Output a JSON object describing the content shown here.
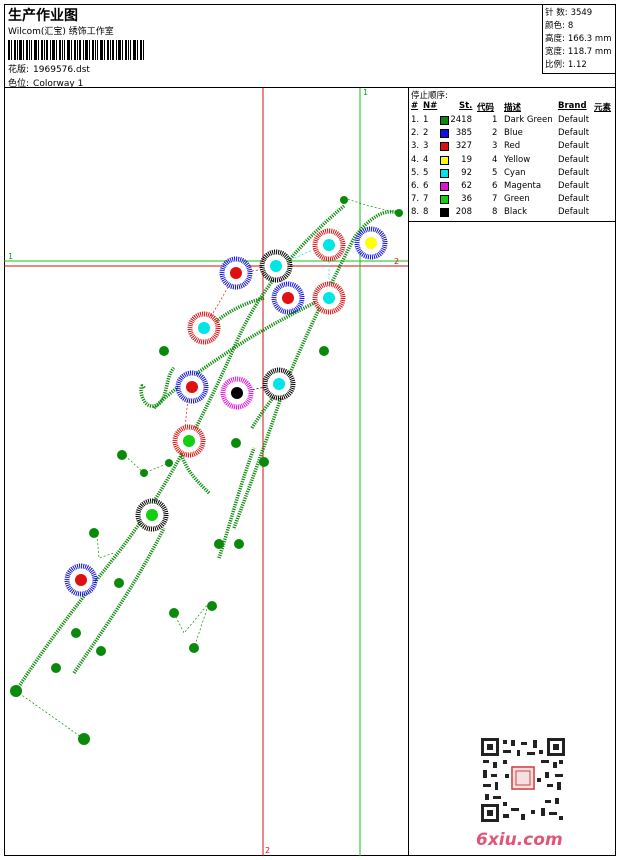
{
  "header": {
    "title": "生产作业图",
    "company": "Wilcom(汇宝) 绣饰工作室",
    "design_label": "花版:",
    "design_value": "1969576.dst",
    "colorway_label": "色位:",
    "colorway_value": "Colorway 1"
  },
  "stats": {
    "stitches_label": "针 数:",
    "stitches_value": "3549",
    "colors_label": "颜色:",
    "colors_value": "8",
    "height_label": "高度:",
    "height_value": "166.3 mm",
    "width_label": "宽度:",
    "width_value": "118.7 mm",
    "scale_label": "比例:",
    "scale_value": "1.12"
  },
  "legend": {
    "title": "停止顺序:",
    "headers": [
      "#",
      "N#",
      "St.",
      "代码",
      "描述",
      "Brand",
      "元素"
    ],
    "rows": [
      {
        "num": "1.",
        "n": "1",
        "st": "2418",
        "code": "1",
        "desc": "Dark Green",
        "brand": "Default",
        "color": "#0a8a0a"
      },
      {
        "num": "2.",
        "n": "2",
        "st": "385",
        "code": "2",
        "desc": "Blue",
        "brand": "Default",
        "color": "#1010e0"
      },
      {
        "num": "3.",
        "n": "3",
        "st": "327",
        "code": "3",
        "desc": "Red",
        "brand": "Default",
        "color": "#e01010"
      },
      {
        "num": "4.",
        "n": "4",
        "st": "19",
        "code": "4",
        "desc": "Yellow",
        "brand": "Default",
        "color": "#ffff00"
      },
      {
        "num": "5.",
        "n": "5",
        "st": "92",
        "code": "5",
        "desc": "Cyan",
        "brand": "Default",
        "color": "#00e5e5"
      },
      {
        "num": "6.",
        "n": "6",
        "st": "62",
        "code": "6",
        "desc": "Magenta",
        "brand": "Default",
        "color": "#e010e0"
      },
      {
        "num": "7.",
        "n": "7",
        "st": "36",
        "code": "7",
        "desc": "Green",
        "brand": "Default",
        "color": "#10d010"
      },
      {
        "num": "8.",
        "n": "8",
        "st": "208",
        "code": "8",
        "desc": "Black",
        "brand": "Default",
        "color": "#000000"
      }
    ]
  },
  "guides": {
    "h1_label": "1",
    "h2_label": "2",
    "v1_label": "1",
    "v2_label": "2"
  },
  "watermark": "6xiu.com"
}
